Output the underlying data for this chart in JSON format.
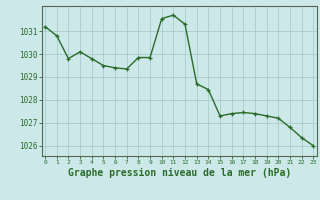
{
  "x": [
    0,
    1,
    2,
    3,
    4,
    5,
    6,
    7,
    8,
    9,
    10,
    11,
    12,
    13,
    14,
    15,
    16,
    17,
    18,
    19,
    20,
    21,
    22,
    23
  ],
  "y": [
    1031.2,
    1030.8,
    1029.8,
    1030.1,
    1029.8,
    1029.5,
    1029.4,
    1029.35,
    1029.85,
    1029.85,
    1031.55,
    1031.7,
    1031.3,
    1028.7,
    1028.45,
    1027.3,
    1027.4,
    1027.45,
    1027.4,
    1027.3,
    1027.2,
    1026.8,
    1026.35,
    1026.0
  ],
  "line_color": "#2a6b2a",
  "marker": "+",
  "marker_size": 3.5,
  "marker_linewidth": 0.9,
  "background_color": "#cce8e8",
  "grid_color": "#aacccc",
  "xlabel": "Graphe pression niveau de la mer (hPa)",
  "xlabel_fontsize": 7,
  "ytick_labels": [
    "1026",
    "1027",
    "1028",
    "1029",
    "1030",
    "1031"
  ],
  "ytick_values": [
    1026,
    1027,
    1028,
    1029,
    1030,
    1031
  ],
  "ylim": [
    1025.55,
    1032.1
  ],
  "xlim": [
    -0.3,
    23.3
  ],
  "xtick_labels": [
    "0",
    "1",
    "2",
    "3",
    "4",
    "5",
    "6",
    "7",
    "8",
    "9",
    "10",
    "11",
    "12",
    "13",
    "14",
    "15",
    "16",
    "17",
    "18",
    "19",
    "20",
    "21",
    "22",
    "23"
  ],
  "axis_color": "#556655",
  "tick_color": "#2a6b2a",
  "tick_label_color": "#2a6b2a",
  "xlabel_color": "#2a6b2a",
  "line_width": 1.0
}
